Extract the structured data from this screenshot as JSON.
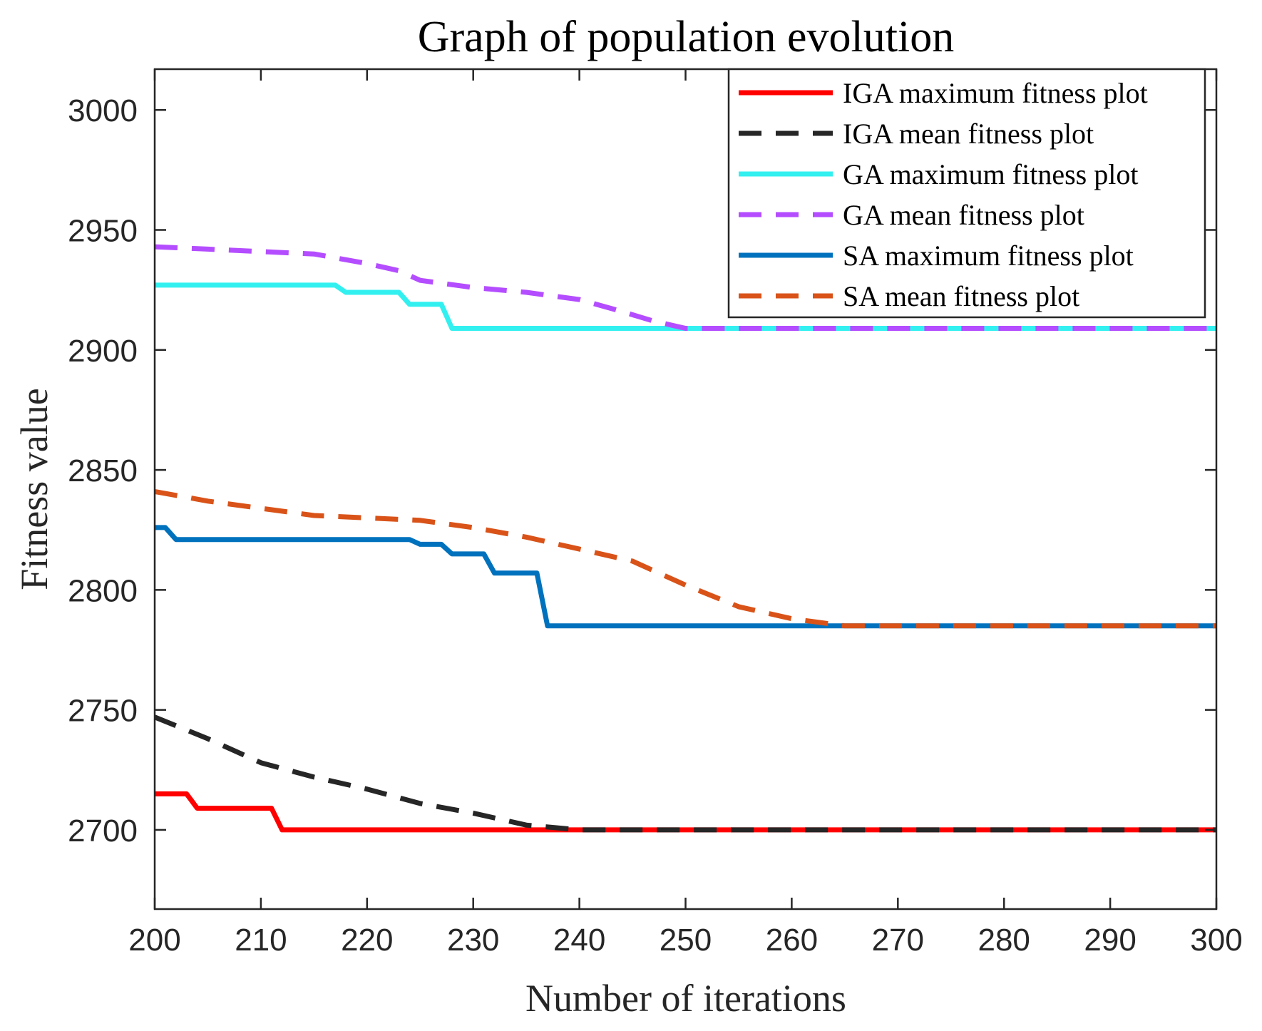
{
  "chart_data": {
    "type": "line",
    "title": "Graph of population evolution",
    "xlabel": "Number of iterations",
    "ylabel": "Fitness value",
    "xlim": [
      200,
      300
    ],
    "ylim": [
      2667,
      3017
    ],
    "xticks": [
      200,
      210,
      220,
      230,
      240,
      250,
      260,
      270,
      280,
      290,
      300
    ],
    "yticks": [
      2700,
      2750,
      2800,
      2850,
      2900,
      2950,
      3000
    ],
    "grid": false,
    "legend_position": "top-right",
    "series": [
      {
        "name": "IGA maximum fitness plot",
        "color": "#ff0000",
        "style": "solid",
        "x": [
          200,
          203,
          204,
          211,
          212,
          300
        ],
        "y": [
          2715,
          2715,
          2709,
          2709,
          2700,
          2700
        ]
      },
      {
        "name": "IGA mean fitness plot",
        "color": "#262626",
        "style": "dashed",
        "x": [
          200,
          205,
          210,
          215,
          220,
          225,
          230,
          235,
          240,
          300
        ],
        "y": [
          2747,
          2738,
          2728,
          2722,
          2717,
          2711,
          2707,
          2702,
          2700,
          2700
        ]
      },
      {
        "name": "GA maximum fitness plot",
        "color": "#33f0f0",
        "style": "solid",
        "x": [
          200,
          217,
          218,
          223,
          224,
          227,
          228,
          300
        ],
        "y": [
          2927,
          2927,
          2924,
          2924,
          2919,
          2919,
          2909,
          2909
        ]
      },
      {
        "name": "GA mean fitness plot",
        "color": "#b44dff",
        "style": "dashed",
        "x": [
          200,
          205,
          210,
          215,
          220,
          223,
          225,
          230,
          235,
          240,
          244,
          247,
          250,
          300
        ],
        "y": [
          2943,
          2942,
          2941,
          2940,
          2936,
          2933,
          2929,
          2926,
          2924,
          2921,
          2916,
          2912,
          2909,
          2909
        ]
      },
      {
        "name": "SA maximum fitness plot",
        "color": "#0072bd",
        "style": "solid",
        "x": [
          200,
          201,
          202,
          224,
          225,
          227,
          228,
          231,
          232,
          236,
          237,
          300
        ],
        "y": [
          2826,
          2826,
          2821,
          2821,
          2819,
          2819,
          2815,
          2815,
          2807,
          2807,
          2785,
          2785
        ]
      },
      {
        "name": "SA mean fitness plot",
        "color": "#d95319",
        "style": "dashed",
        "x": [
          200,
          205,
          210,
          215,
          220,
          225,
          230,
          235,
          240,
          245,
          250,
          255,
          260,
          265,
          267,
          300
        ],
        "y": [
          2841,
          2837,
          2834,
          2831,
          2830,
          2829,
          2826,
          2822,
          2817,
          2812,
          2802,
          2793,
          2788,
          2785,
          2785,
          2785
        ]
      }
    ]
  }
}
